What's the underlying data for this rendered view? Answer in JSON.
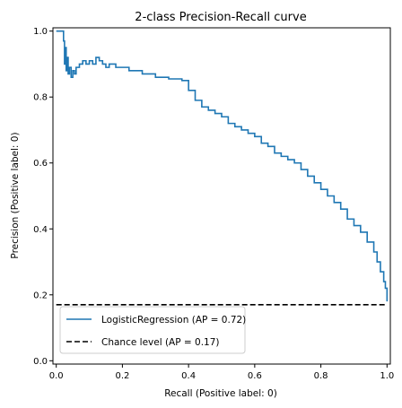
{
  "chart_data": {
    "type": "line",
    "title": "2-class Precision-Recall curve",
    "xlabel": "Recall (Positive label: 0)",
    "ylabel": "Precision (Positive label: 0)",
    "xlim": [
      -0.01,
      1.01
    ],
    "ylim": [
      -0.01,
      1.01
    ],
    "xticks": [
      0.0,
      0.2,
      0.4,
      0.6,
      0.8,
      1.0
    ],
    "yticks": [
      0.0,
      0.2,
      0.4,
      0.6,
      0.8,
      1.0
    ],
    "xtick_labels": [
      "0.0",
      "0.2",
      "0.4",
      "0.6",
      "0.8",
      "1.0"
    ],
    "ytick_labels": [
      "0.0",
      "0.2",
      "0.4",
      "0.6",
      "0.8",
      "1.0"
    ],
    "grid": false,
    "legend_position": "lower-left",
    "series": [
      {
        "name": "LogisticRegression (AP = 0.72)",
        "color": "#1f77b4",
        "style": "solid",
        "x": [
          0.0,
          0.005,
          0.01,
          0.015,
          0.02,
          0.022,
          0.025,
          0.028,
          0.03,
          0.033,
          0.036,
          0.04,
          0.045,
          0.05,
          0.055,
          0.06,
          0.07,
          0.08,
          0.09,
          0.1,
          0.11,
          0.12,
          0.13,
          0.14,
          0.15,
          0.16,
          0.18,
          0.2,
          0.22,
          0.24,
          0.26,
          0.28,
          0.3,
          0.32,
          0.34,
          0.36,
          0.38,
          0.4,
          0.42,
          0.44,
          0.46,
          0.48,
          0.5,
          0.52,
          0.54,
          0.56,
          0.58,
          0.6,
          0.62,
          0.64,
          0.66,
          0.68,
          0.7,
          0.72,
          0.74,
          0.76,
          0.78,
          0.8,
          0.82,
          0.84,
          0.86,
          0.88,
          0.9,
          0.92,
          0.94,
          0.96,
          0.97,
          0.98,
          0.99,
          0.995,
          1.0
        ],
        "y": [
          1.0,
          1.0,
          1.0,
          1.0,
          1.0,
          0.97,
          0.9,
          0.95,
          0.88,
          0.92,
          0.87,
          0.89,
          0.86,
          0.88,
          0.87,
          0.89,
          0.9,
          0.91,
          0.9,
          0.91,
          0.9,
          0.92,
          0.91,
          0.9,
          0.89,
          0.9,
          0.89,
          0.89,
          0.88,
          0.88,
          0.87,
          0.87,
          0.86,
          0.86,
          0.855,
          0.855,
          0.85,
          0.82,
          0.79,
          0.77,
          0.76,
          0.75,
          0.74,
          0.72,
          0.71,
          0.7,
          0.69,
          0.68,
          0.66,
          0.65,
          0.63,
          0.62,
          0.61,
          0.6,
          0.58,
          0.56,
          0.54,
          0.52,
          0.5,
          0.48,
          0.46,
          0.43,
          0.41,
          0.39,
          0.36,
          0.33,
          0.3,
          0.27,
          0.24,
          0.22,
          0.18
        ]
      },
      {
        "name": "Chance level (AP = 0.17)",
        "color": "#000000",
        "style": "dashed",
        "x": [
          0.0,
          1.0
        ],
        "y": [
          0.17,
          0.17
        ]
      }
    ]
  }
}
